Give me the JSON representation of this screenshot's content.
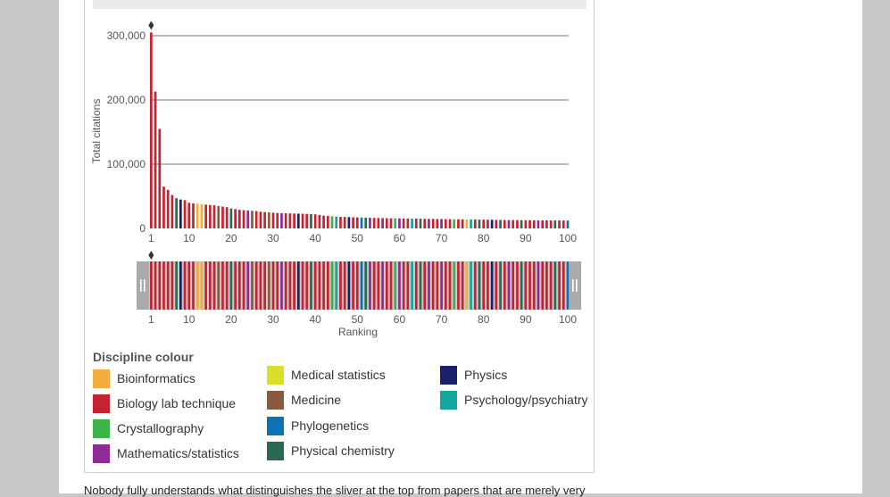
{
  "chart_data": {
    "type": "bar",
    "ylabel": "Total citations",
    "xlabel": "Ranking",
    "ylim": [
      0,
      300000
    ],
    "y_ticks": [
      0,
      100000,
      200000,
      300000
    ],
    "y_tick_labels": [
      "0",
      "100,000",
      "200,000",
      "300,000"
    ],
    "x_ticks": [
      1,
      10,
      20,
      30,
      40,
      50,
      60,
      70,
      80,
      90,
      100
    ],
    "grid": true,
    "categories": [
      1,
      2,
      3,
      4,
      5,
      6,
      7,
      8,
      9,
      10,
      11,
      12,
      13,
      14,
      15,
      16,
      17,
      18,
      19,
      20,
      21,
      22,
      23,
      24,
      25,
      26,
      27,
      28,
      29,
      30,
      31,
      32,
      33,
      34,
      35,
      36,
      37,
      38,
      39,
      40,
      41,
      42,
      43,
      44,
      45,
      46,
      47,
      48,
      49,
      50,
      51,
      52,
      53,
      54,
      55,
      56,
      57,
      58,
      59,
      60,
      61,
      62,
      63,
      64,
      65,
      66,
      67,
      68,
      69,
      70,
      71,
      72,
      73,
      74,
      75,
      76,
      77,
      78,
      79,
      80,
      81,
      82,
      83,
      84,
      85,
      86,
      87,
      88,
      89,
      90,
      91,
      92,
      93,
      94,
      95,
      96,
      97,
      98,
      99,
      100
    ],
    "values": [
      305000,
      213000,
      155000,
      65000,
      60000,
      52000,
      47000,
      45000,
      44000,
      40000,
      39000,
      38500,
      38000,
      37000,
      36500,
      36000,
      35000,
      34000,
      33000,
      31000,
      30000,
      29000,
      28500,
      28000,
      27500,
      27000,
      26000,
      25500,
      25000,
      24500,
      24000,
      23800,
      23600,
      23400,
      23200,
      23000,
      22800,
      22600,
      22400,
      22000,
      21000,
      20000,
      19500,
      19000,
      18500,
      18000,
      17800,
      17600,
      17400,
      17200,
      17000,
      16800,
      16600,
      16400,
      16200,
      16000,
      15900,
      15800,
      15700,
      15600,
      15500,
      15400,
      15300,
      15200,
      15100,
      15000,
      14900,
      14800,
      14700,
      14600,
      14500,
      14400,
      14300,
      14200,
      14100,
      14000,
      13900,
      13800,
      13700,
      13600,
      13500,
      13400,
      13300,
      13200,
      13100,
      13000,
      12950,
      12900,
      12850,
      12800,
      12750,
      12700,
      12650,
      12600,
      12550,
      12500,
      12450,
      12400,
      12350,
      12300
    ],
    "disciplines": [
      "bio",
      "bio",
      "bio",
      "bio",
      "bio",
      "bio",
      "pch",
      "phy",
      "bio",
      "bio",
      "bio",
      "inf",
      "inf",
      "bio",
      "bio",
      "bio",
      "med",
      "bio",
      "bio",
      "pch",
      "bio",
      "bio",
      "bio",
      "mat",
      "med",
      "bio",
      "bio",
      "bio",
      "med",
      "bio",
      "bio",
      "mat",
      "bio",
      "bio",
      "bio",
      "phy",
      "bio",
      "bio",
      "pch",
      "bio",
      "bio",
      "bio",
      "bio",
      "cry",
      "psy",
      "bio",
      "bio",
      "phy",
      "bio",
      "bio",
      "phl",
      "pch",
      "mat",
      "bio",
      "bio",
      "mat",
      "bio",
      "bio",
      "cry",
      "mat",
      "bio",
      "bio",
      "psy",
      "bio",
      "pch",
      "bio",
      "mat",
      "bio",
      "bio",
      "mat",
      "bio",
      "bio",
      "cry",
      "bio",
      "bio",
      "inf",
      "psy",
      "bio",
      "pch",
      "bio",
      "bio",
      "phy",
      "bio",
      "pch",
      "bio",
      "mat",
      "bio",
      "bio",
      "pch",
      "bio",
      "bio",
      "bio",
      "mat",
      "bio",
      "bio",
      "bio",
      "pch",
      "bio",
      "bio",
      "phl"
    ],
    "discipline_colors": {
      "inf": "#f5ae3d",
      "bio": "#c42331",
      "cry": "#3cb44a",
      "mat": "#8e2b96",
      "mst": "#d9e02c",
      "med": "#8a5a3c",
      "phl": "#0b72b5",
      "pch": "#2a6a55",
      "phy": "#1c1f6c",
      "psy": "#13a7a0"
    },
    "gridline_color": "#444444",
    "navigator_background": "#cccccc",
    "navigator_handle_color": "#aaaaaa",
    "highlight_index": 1
  },
  "legend": {
    "title": "Discipline colour",
    "items": [
      {
        "label": "Bioinformatics",
        "color": "#f5ae3d"
      },
      {
        "label": "Biology lab technique",
        "color": "#c42331"
      },
      {
        "label": "Crystallography",
        "color": "#3cb44a"
      },
      {
        "label": "Mathematics/statistics",
        "color": "#8e2b96"
      },
      {
        "label": "Medical statistics",
        "color": "#d9e02c"
      },
      {
        "label": "Medicine",
        "color": "#8a5a3c"
      },
      {
        "label": "Phylogenetics",
        "color": "#0b72b5"
      },
      {
        "label": "Physical chemistry",
        "color": "#2a6a55"
      },
      {
        "label": "Physics",
        "color": "#1c1f6c"
      },
      {
        "label": "Psychology/psychiatry",
        "color": "#13a7a0"
      }
    ]
  },
  "article": {
    "text": "Nobody fully understands what distinguishes the sliver at the top from papers that are merely very"
  }
}
